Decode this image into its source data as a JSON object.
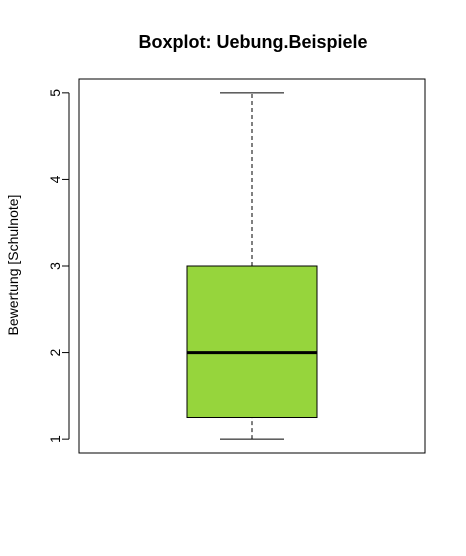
{
  "chart_data": {
    "type": "boxplot",
    "title": "Boxplot: Uebung.Beispiele",
    "ylabel": "Bewertung [Schulnote]",
    "xlabel": "",
    "ylim": [
      0.84,
      5.16
    ],
    "yticks": [
      1,
      2,
      3,
      4,
      5
    ],
    "ytick_labels": [
      "1",
      "2",
      "3",
      "4",
      "5"
    ],
    "grid": false,
    "box": {
      "min": 1,
      "q1": 1.25,
      "median": 2,
      "q3": 3,
      "max": 5
    },
    "colors": {
      "box_fill": "#96d53c",
      "stroke": "#000000"
    }
  }
}
